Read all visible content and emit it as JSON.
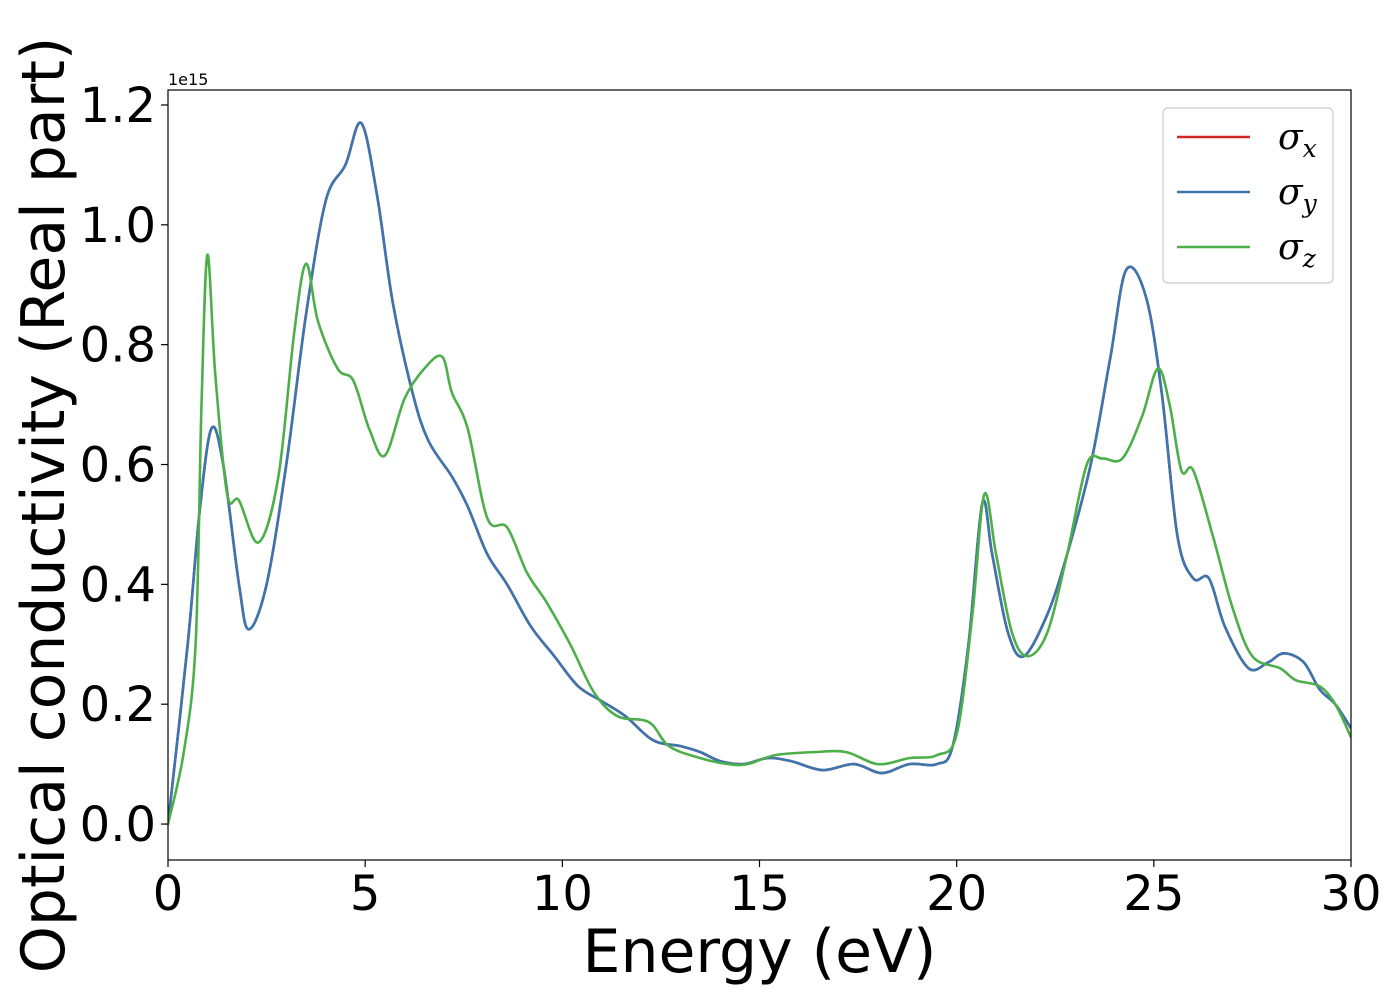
{
  "chart_data": {
    "type": "line",
    "title": "",
    "xlabel": "Energy (eV)",
    "ylabel": "Optical conductivity (Real part)",
    "y_offset_label": "1e15",
    "xlim": [
      0,
      30
    ],
    "ylim": [
      -0.06,
      1.225
    ],
    "xticks": [
      0,
      5,
      10,
      15,
      20,
      25,
      30
    ],
    "xtick_labels": [
      "0",
      "5",
      "10",
      "15",
      "20",
      "25",
      "30"
    ],
    "yticks": [
      0.0,
      0.2,
      0.4,
      0.6,
      0.8,
      1.0,
      1.2
    ],
    "ytick_labels": [
      "0.0",
      "0.2",
      "0.4",
      "0.6",
      "0.8",
      "1.0",
      "1.2"
    ],
    "grid": false,
    "legend_position": "top-right",
    "series": [
      {
        "name": "σx",
        "symbol": "σ",
        "subscript": "x",
        "color": "#d62728",
        "points": [
          [
            0,
            0
          ],
          [
            0.5,
            0.3
          ],
          [
            0.8,
            0.52
          ],
          [
            1.1,
            0.66
          ],
          [
            1.4,
            0.6
          ],
          [
            1.8,
            0.4
          ],
          [
            2.05,
            0.325
          ],
          [
            2.5,
            0.4
          ],
          [
            3,
            0.6
          ],
          [
            3.5,
            0.85
          ],
          [
            4,
            1.04
          ],
          [
            4.5,
            1.1
          ],
          [
            4.9,
            1.17
          ],
          [
            5.3,
            1.05
          ],
          [
            5.7,
            0.87
          ],
          [
            6.2,
            0.72
          ],
          [
            6.6,
            0.64
          ],
          [
            7.2,
            0.58
          ],
          [
            7.6,
            0.53
          ],
          [
            8.1,
            0.45
          ],
          [
            8.6,
            0.4
          ],
          [
            9.2,
            0.33
          ],
          [
            9.8,
            0.28
          ],
          [
            10.4,
            0.23
          ],
          [
            11,
            0.205
          ],
          [
            11.6,
            0.18
          ],
          [
            12.3,
            0.14
          ],
          [
            13,
            0.13
          ],
          [
            13.5,
            0.12
          ],
          [
            14,
            0.105
          ],
          [
            14.6,
            0.1
          ],
          [
            15.2,
            0.11
          ],
          [
            15.8,
            0.105
          ],
          [
            16.6,
            0.09
          ],
          [
            17.4,
            0.1
          ],
          [
            18.1,
            0.085
          ],
          [
            18.8,
            0.1
          ],
          [
            19.5,
            0.1
          ],
          [
            19.9,
            0.13
          ],
          [
            20.3,
            0.3
          ],
          [
            20.65,
            0.535
          ],
          [
            20.9,
            0.45
          ],
          [
            21.3,
            0.32
          ],
          [
            21.7,
            0.28
          ],
          [
            22.3,
            0.35
          ],
          [
            22.8,
            0.45
          ],
          [
            23.4,
            0.6
          ],
          [
            23.9,
            0.78
          ],
          [
            24.3,
            0.925
          ],
          [
            24.8,
            0.88
          ],
          [
            25.2,
            0.72
          ],
          [
            25.6,
            0.48
          ],
          [
            26,
            0.41
          ],
          [
            26.4,
            0.41
          ],
          [
            26.8,
            0.33
          ],
          [
            27.4,
            0.26
          ],
          [
            27.9,
            0.27
          ],
          [
            28.3,
            0.285
          ],
          [
            28.8,
            0.27
          ],
          [
            29.2,
            0.225
          ],
          [
            29.6,
            0.2
          ],
          [
            30,
            0.16
          ]
        ]
      },
      {
        "name": "σy",
        "symbol": "σ",
        "subscript": "y",
        "color": "#3a76af",
        "points": [
          [
            0,
            0
          ],
          [
            0.5,
            0.3
          ],
          [
            0.8,
            0.52
          ],
          [
            1.1,
            0.66
          ],
          [
            1.4,
            0.6
          ],
          [
            1.8,
            0.4
          ],
          [
            2.05,
            0.325
          ],
          [
            2.5,
            0.4
          ],
          [
            3,
            0.6
          ],
          [
            3.5,
            0.85
          ],
          [
            4,
            1.04
          ],
          [
            4.5,
            1.1
          ],
          [
            4.9,
            1.17
          ],
          [
            5.3,
            1.05
          ],
          [
            5.7,
            0.87
          ],
          [
            6.2,
            0.72
          ],
          [
            6.6,
            0.64
          ],
          [
            7.2,
            0.58
          ],
          [
            7.6,
            0.53
          ],
          [
            8.1,
            0.45
          ],
          [
            8.6,
            0.4
          ],
          [
            9.2,
            0.33
          ],
          [
            9.8,
            0.28
          ],
          [
            10.4,
            0.23
          ],
          [
            11,
            0.205
          ],
          [
            11.6,
            0.18
          ],
          [
            12.3,
            0.14
          ],
          [
            13,
            0.13
          ],
          [
            13.5,
            0.12
          ],
          [
            14,
            0.105
          ],
          [
            14.6,
            0.1
          ],
          [
            15.2,
            0.11
          ],
          [
            15.8,
            0.105
          ],
          [
            16.6,
            0.09
          ],
          [
            17.4,
            0.1
          ],
          [
            18.1,
            0.085
          ],
          [
            18.8,
            0.1
          ],
          [
            19.5,
            0.1
          ],
          [
            19.9,
            0.13
          ],
          [
            20.3,
            0.3
          ],
          [
            20.65,
            0.535
          ],
          [
            20.9,
            0.45
          ],
          [
            21.3,
            0.32
          ],
          [
            21.7,
            0.28
          ],
          [
            22.3,
            0.35
          ],
          [
            22.8,
            0.45
          ],
          [
            23.4,
            0.6
          ],
          [
            23.9,
            0.78
          ],
          [
            24.3,
            0.925
          ],
          [
            24.8,
            0.88
          ],
          [
            25.2,
            0.72
          ],
          [
            25.6,
            0.48
          ],
          [
            26,
            0.41
          ],
          [
            26.4,
            0.41
          ],
          [
            26.8,
            0.33
          ],
          [
            27.4,
            0.26
          ],
          [
            27.9,
            0.27
          ],
          [
            28.3,
            0.285
          ],
          [
            28.8,
            0.27
          ],
          [
            29.2,
            0.225
          ],
          [
            29.6,
            0.2
          ],
          [
            30,
            0.16
          ]
        ]
      },
      {
        "name": "σz",
        "symbol": "σ",
        "subscript": "z",
        "color": "#4daf4a",
        "points": [
          [
            0,
            0
          ],
          [
            0.4,
            0.12
          ],
          [
            0.7,
            0.3
          ],
          [
            0.85,
            0.7
          ],
          [
            1.0,
            0.95
          ],
          [
            1.2,
            0.75
          ],
          [
            1.5,
            0.55
          ],
          [
            1.8,
            0.54
          ],
          [
            2.3,
            0.47
          ],
          [
            2.8,
            0.58
          ],
          [
            3.2,
            0.82
          ],
          [
            3.5,
            0.935
          ],
          [
            3.8,
            0.84
          ],
          [
            4.3,
            0.76
          ],
          [
            4.7,
            0.74
          ],
          [
            5.1,
            0.66
          ],
          [
            5.5,
            0.615
          ],
          [
            6,
            0.71
          ],
          [
            6.5,
            0.76
          ],
          [
            6.95,
            0.78
          ],
          [
            7.2,
            0.72
          ],
          [
            7.6,
            0.66
          ],
          [
            8.1,
            0.51
          ],
          [
            8.6,
            0.495
          ],
          [
            9.1,
            0.42
          ],
          [
            9.6,
            0.37
          ],
          [
            10.2,
            0.3
          ],
          [
            10.8,
            0.22
          ],
          [
            11.4,
            0.18
          ],
          [
            12.2,
            0.17
          ],
          [
            12.7,
            0.13
          ],
          [
            13.5,
            0.11
          ],
          [
            14.2,
            0.1
          ],
          [
            14.7,
            0.1
          ],
          [
            15.4,
            0.115
          ],
          [
            16.4,
            0.12
          ],
          [
            17.2,
            0.12
          ],
          [
            18,
            0.1
          ],
          [
            18.8,
            0.11
          ],
          [
            19.5,
            0.115
          ],
          [
            20,
            0.15
          ],
          [
            20.4,
            0.35
          ],
          [
            20.7,
            0.55
          ],
          [
            21,
            0.45
          ],
          [
            21.4,
            0.32
          ],
          [
            21.8,
            0.28
          ],
          [
            22.3,
            0.32
          ],
          [
            22.8,
            0.45
          ],
          [
            23.3,
            0.6
          ],
          [
            23.7,
            0.61
          ],
          [
            24.2,
            0.61
          ],
          [
            24.7,
            0.68
          ],
          [
            25.1,
            0.76
          ],
          [
            25.4,
            0.7
          ],
          [
            25.7,
            0.59
          ],
          [
            26,
            0.59
          ],
          [
            26.5,
            0.48
          ],
          [
            27,
            0.36
          ],
          [
            27.5,
            0.28
          ],
          [
            28.2,
            0.26
          ],
          [
            28.6,
            0.24
          ],
          [
            29.2,
            0.23
          ],
          [
            29.6,
            0.2
          ],
          [
            30,
            0.145
          ]
        ]
      }
    ]
  }
}
